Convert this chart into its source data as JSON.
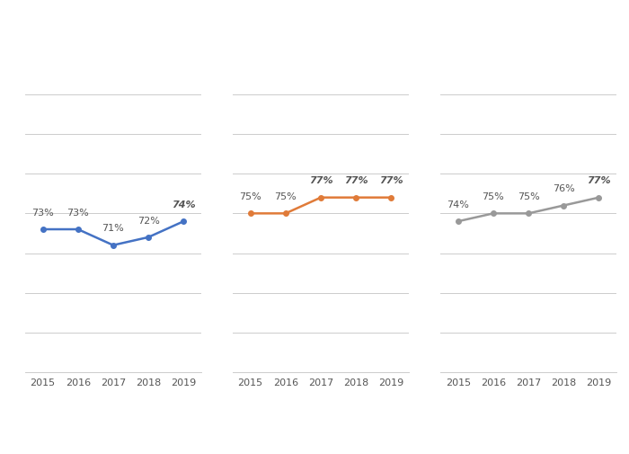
{
  "years": [
    2015,
    2016,
    2017,
    2018,
    2019
  ],
  "series": [
    {
      "values": [
        73,
        73,
        71,
        72,
        74
      ],
      "labels": [
        "73%",
        "73%",
        "71%",
        "72%",
        "74%"
      ],
      "color": "#4472C4",
      "marker": "o",
      "linewidth": 1.8,
      "markersize": 4
    },
    {
      "values": [
        75,
        75,
        77,
        77,
        77
      ],
      "labels": [
        "75%",
        "75%",
        "77%",
        "77%",
        "77%"
      ],
      "color": "#E07B39",
      "marker": "o",
      "linewidth": 1.8,
      "markersize": 4
    },
    {
      "values": [
        74,
        75,
        75,
        76,
        77
      ],
      "labels": [
        "74%",
        "75%",
        "75%",
        "76%",
        "77%"
      ],
      "color": "#999999",
      "marker": "o",
      "linewidth": 1.8,
      "markersize": 4
    }
  ],
  "background_color": "#FFFFFF",
  "grid_color": "#CCCCCC",
  "text_color": "#555555",
  "tick_color": "#555555",
  "ylim": [
    55,
    95
  ],
  "yticks": [
    60,
    65,
    70,
    75,
    80,
    85,
    90
  ],
  "label_fontsize": 8,
  "tick_fontsize": 8
}
